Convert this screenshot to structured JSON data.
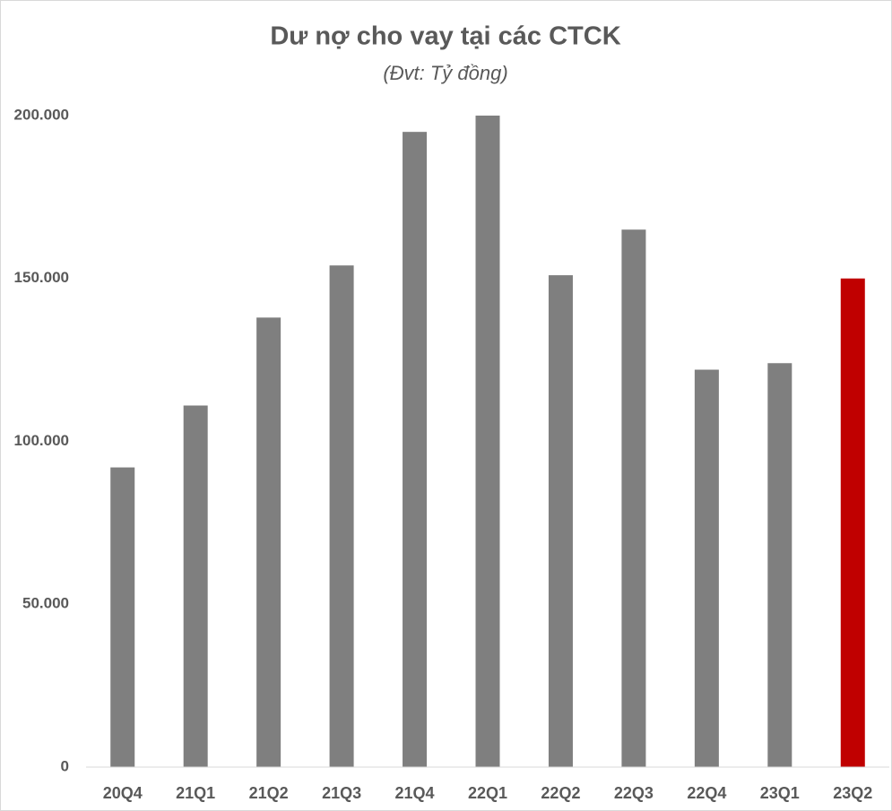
{
  "chart_data": {
    "type": "bar",
    "title": "Dư nợ cho vay tại các CTCK",
    "subtitle": "(Đvt: Tỷ đồng)",
    "categories": [
      "20Q4",
      "21Q1",
      "21Q2",
      "21Q3",
      "21Q4",
      "22Q1",
      "22Q2",
      "22Q3",
      "22Q4",
      "23Q1",
      "23Q2"
    ],
    "values": [
      92000,
      111000,
      138000,
      154000,
      195000,
      200000,
      151000,
      165000,
      122000,
      124000,
      150000
    ],
    "colors": [
      "#7f7f7f",
      "#7f7f7f",
      "#7f7f7f",
      "#7f7f7f",
      "#7f7f7f",
      "#7f7f7f",
      "#7f7f7f",
      "#7f7f7f",
      "#7f7f7f",
      "#7f7f7f",
      "#c00000"
    ],
    "ylim": [
      0,
      200000
    ],
    "yticks": [
      0,
      {
        "value": 50000,
        "label": "50.000"
      },
      {
        "value": 100000,
        "label": "100.000"
      },
      {
        "value": 150000,
        "label": "150.000"
      },
      {
        "value": 200000,
        "label": "200.000"
      }
    ],
    "grid": false
  }
}
